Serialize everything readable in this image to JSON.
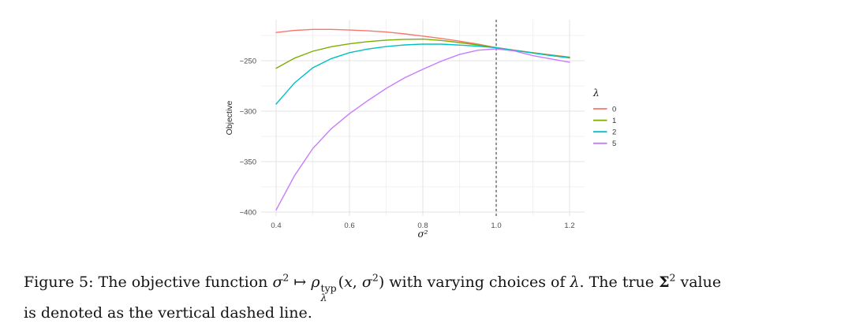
{
  "figure": {
    "caption": {
      "full_text": "Figure 5: The objective function σ² ↦ ρ_λ^typ(x, σ²) with varying choices of λ. The true Σ² value is denoted as the vertical dashed line.",
      "runs": [
        {
          "t": "text",
          "s": "Figure 5: The objective function "
        },
        {
          "t": "i",
          "s": "σ"
        },
        {
          "t": "sup",
          "s": "2"
        },
        {
          "t": "text",
          "s": " ↦ "
        },
        {
          "t": "i",
          "s": "ρ"
        },
        {
          "t": "supsub",
          "sup": "typ",
          "sub": "λ"
        },
        {
          "t": "text",
          "s": "("
        },
        {
          "t": "i",
          "s": "x"
        },
        {
          "t": "text",
          "s": ", "
        },
        {
          "t": "i",
          "s": "σ"
        },
        {
          "t": "sup",
          "s": "2"
        },
        {
          "t": "text",
          "s": ") with varying choices of "
        },
        {
          "t": "i",
          "s": "λ"
        },
        {
          "t": "text",
          "s": ". The true "
        },
        {
          "t": "b",
          "s": "Σ"
        },
        {
          "t": "sup",
          "s": "2"
        },
        {
          "t": "text",
          "s": " value"
        },
        {
          "t": "br"
        },
        {
          "t": "text",
          "s": "is denoted as the vertical dashed line."
        }
      ]
    }
  },
  "chart_data": {
    "type": "line",
    "title": "",
    "xlabel": "σ²",
    "ylabel": "Objective",
    "xlim": [
      0.36,
      1.24
    ],
    "ylim": [
      -404,
      -209
    ],
    "grid": true,
    "x_ticks": {
      "values": [
        0.4,
        0.6,
        0.8,
        1.0,
        1.2
      ],
      "labels": [
        "0.4",
        "0.6",
        "0.8",
        "1.0",
        "1.2"
      ],
      "minor": [
        0.5,
        0.7,
        0.9,
        1.1
      ]
    },
    "y_ticks": {
      "values": [
        -250,
        -300,
        -350,
        -400
      ],
      "labels": [
        "−250",
        "−300",
        "−350",
        "−400"
      ],
      "minor": [
        -225,
        -275,
        -325,
        -375
      ]
    },
    "vline": {
      "x": 1.0,
      "style": "dashed",
      "color": "#3c3c3c"
    },
    "legend": {
      "title": "λ",
      "position": "right"
    },
    "x": [
      0.4,
      0.45,
      0.5,
      0.55,
      0.6,
      0.65,
      0.7,
      0.75,
      0.8,
      0.85,
      0.9,
      0.95,
      1.0,
      1.05,
      1.1,
      1.15,
      1.2
    ],
    "series": [
      {
        "name": "0",
        "color": "#F8766D",
        "values": [
          -222.0,
          -220.0,
          -219.0,
          -219.0,
          -219.6,
          -220.4,
          -221.6,
          -223.4,
          -225.6,
          -228.0,
          -230.6,
          -233.6,
          -237.0,
          -239.6,
          -242.0,
          -244.3,
          -246.4
        ]
      },
      {
        "name": "1",
        "color": "#7CAE00",
        "values": [
          -257.5,
          -247.5,
          -240.6,
          -236.2,
          -233.3,
          -231.1,
          -229.6,
          -228.8,
          -228.6,
          -229.9,
          -232.0,
          -234.4,
          -237.1,
          -239.7,
          -242.2,
          -244.6,
          -246.8
        ]
      },
      {
        "name": "2",
        "color": "#00BFC4",
        "values": [
          -293.0,
          -272.0,
          -257.0,
          -248.0,
          -242.0,
          -238.4,
          -236.0,
          -234.4,
          -233.5,
          -233.6,
          -234.5,
          -235.6,
          -237.2,
          -239.8,
          -242.4,
          -244.9,
          -247.2
        ]
      },
      {
        "name": "5",
        "color": "#C77CFF",
        "values": [
          -398.0,
          -364.0,
          -337.0,
          -317.5,
          -302.5,
          -289.5,
          -277.5,
          -267.0,
          -258.5,
          -250.5,
          -243.8,
          -239.6,
          -238.3,
          -240.4,
          -245.0,
          -248.3,
          -251.5
        ]
      }
    ]
  }
}
